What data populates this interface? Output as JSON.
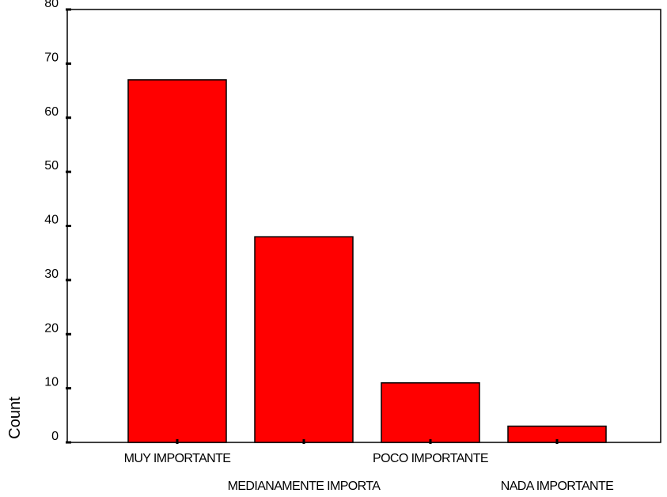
{
  "chart_data": {
    "type": "bar",
    "categories": [
      "MUY IMPORTANTE",
      "MEDIANAMENTE IMPORTA",
      "POCO IMPORTANTE",
      "NADA IMPORTANTE"
    ],
    "values": [
      67,
      38,
      11,
      3
    ],
    "xlabel": "",
    "ylabel": "Count",
    "ylim": [
      0,
      80
    ],
    "yticks": [
      0,
      10,
      20,
      30,
      40,
      50,
      60,
      70,
      80
    ],
    "grid": false,
    "legend": "none",
    "bar_color": "#ff0000",
    "bar_edge_color": "#000000"
  }
}
